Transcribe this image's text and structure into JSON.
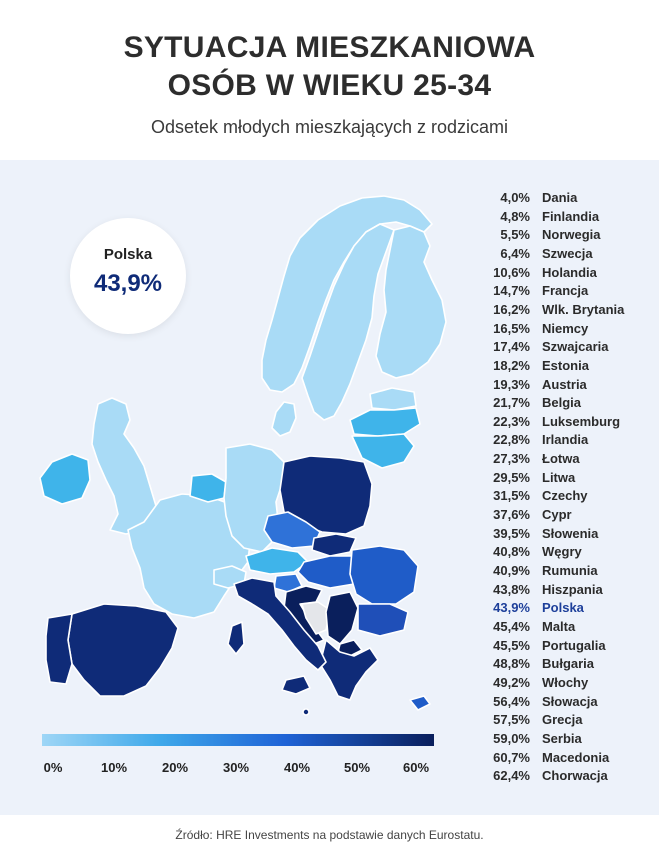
{
  "header": {
    "title_line1": "SYTUACJA MIESZKANIOWA",
    "title_line2": "OSÓB W WIEKU 25-34",
    "subtitle": "Odsetek młodych mieszkających z rodzicami"
  },
  "highlight": {
    "country": "Polska",
    "value": "43,9%"
  },
  "legend": {
    "ticks": [
      "0%",
      "10%",
      "20%",
      "30%",
      "40%",
      "50%",
      "60%"
    ],
    "color_start": "#9ed6f6",
    "color_end": "#0a1f5c"
  },
  "ranking": [
    {
      "value": "4,0%",
      "country": "Dania"
    },
    {
      "value": "4,8%",
      "country": "Finlandia"
    },
    {
      "value": "5,5%",
      "country": "Norwegia"
    },
    {
      "value": "6,4%",
      "country": "Szwecja"
    },
    {
      "value": "10,6%",
      "country": "Holandia"
    },
    {
      "value": "14,7%",
      "country": "Francja"
    },
    {
      "value": "16,2%",
      "country": "Wlk. Brytania"
    },
    {
      "value": "16,5%",
      "country": "Niemcy"
    },
    {
      "value": "17,4%",
      "country": "Szwajcaria"
    },
    {
      "value": "18,2%",
      "country": "Estonia"
    },
    {
      "value": "19,3%",
      "country": "Austria"
    },
    {
      "value": "21,7%",
      "country": "Belgia"
    },
    {
      "value": "22,3%",
      "country": "Luksemburg"
    },
    {
      "value": "22,8%",
      "country": "Irlandia"
    },
    {
      "value": "27,3%",
      "country": "Łotwa"
    },
    {
      "value": "29,5%",
      "country": "Litwa"
    },
    {
      "value": "31,5%",
      "country": "Czechy"
    },
    {
      "value": "37,6%",
      "country": "Cypr"
    },
    {
      "value": "39,5%",
      "country": "Słowenia"
    },
    {
      "value": "40,8%",
      "country": "Węgry"
    },
    {
      "value": "40,9%",
      "country": "Rumunia"
    },
    {
      "value": "43,8%",
      "country": "Hiszpania"
    },
    {
      "value": "43,9%",
      "country": "Polska",
      "highlight": true
    },
    {
      "value": "45,4%",
      "country": "Malta"
    },
    {
      "value": "45,5%",
      "country": "Portugalia"
    },
    {
      "value": "48,8%",
      "country": "Bułgaria"
    },
    {
      "value": "49,2%",
      "country": "Włochy"
    },
    {
      "value": "56,4%",
      "country": "Słowacja"
    },
    {
      "value": "57,5%",
      "country": "Grecja"
    },
    {
      "value": "59,0%",
      "country": "Serbia"
    },
    {
      "value": "60,7%",
      "country": "Macedonia"
    },
    {
      "value": "62,4%",
      "country": "Chorwacja"
    }
  ],
  "footer": {
    "source": "Źródło: HRE Investments na podstawie danych Eurostatu."
  }
}
